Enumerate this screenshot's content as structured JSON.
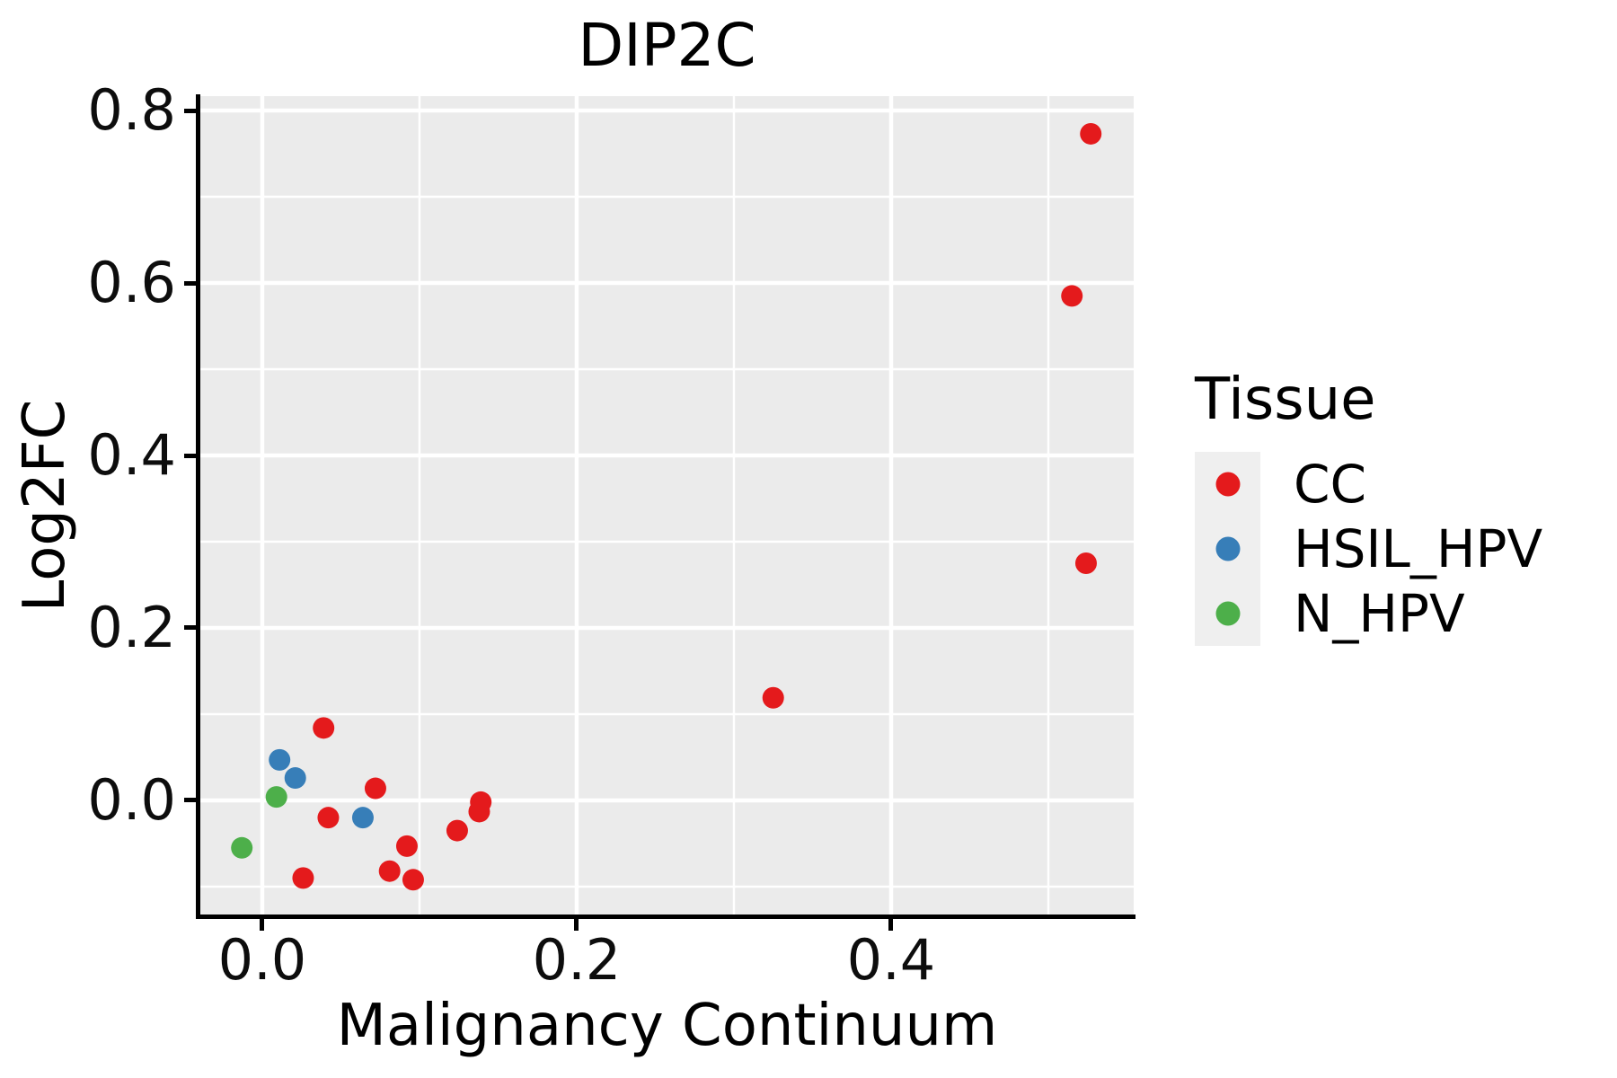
{
  "figure": {
    "title": "DIP2C"
  },
  "chart_data": {
    "type": "scatter",
    "title": "DIP2C",
    "xlabel": "Malignancy Continuum",
    "ylabel": "Log2FC",
    "xlim": [
      -0.0394,
      0.5543
    ],
    "ylim": [
      -0.1344,
      0.8167
    ],
    "x_ticks": [
      0.0,
      0.2,
      0.4
    ],
    "x_tick_labels": [
      "0.0",
      "0.2",
      "0.4"
    ],
    "x_minor_ticks": [
      0.1,
      0.3,
      0.5
    ],
    "y_ticks": [
      0.0,
      0.2,
      0.4,
      0.6,
      0.8
    ],
    "y_tick_labels": [
      "0.0",
      "0.2",
      "0.4",
      "0.6",
      "0.8"
    ],
    "y_minor_ticks": [
      -0.1,
      0.1,
      0.3,
      0.5,
      0.7
    ],
    "grid": true,
    "legend_position": "right",
    "legend_title": "Tissue",
    "series": [
      {
        "name": "CC",
        "color": "#E41A1C",
        "points": [
          [
            0.039,
            0.084
          ],
          [
            0.072,
            0.014
          ],
          [
            0.042,
            -0.02
          ],
          [
            0.026,
            -0.09
          ],
          [
            0.092,
            -0.053
          ],
          [
            0.081,
            -0.082
          ],
          [
            0.096,
            -0.092
          ],
          [
            0.124,
            -0.035
          ],
          [
            0.138,
            -0.013
          ],
          [
            0.139,
            -0.002
          ],
          [
            0.325,
            0.119
          ],
          [
            0.524,
            0.275
          ],
          [
            0.515,
            0.585
          ],
          [
            0.527,
            0.773
          ]
        ]
      },
      {
        "name": "HSIL_HPV",
        "color": "#377EB8",
        "points": [
          [
            0.011,
            0.047
          ],
          [
            0.021,
            0.026
          ],
          [
            0.064,
            -0.02
          ]
        ]
      },
      {
        "name": "N_HPV",
        "color": "#4DAF4A",
        "points": [
          [
            0.009,
            0.004
          ],
          [
            -0.013,
            -0.055
          ]
        ]
      }
    ]
  },
  "legend": {
    "title": "Tissue",
    "entries": [
      {
        "label": "CC",
        "color": "#E41A1C"
      },
      {
        "label": "HSIL_HPV",
        "color": "#377EB8"
      },
      {
        "label": "N_HPV",
        "color": "#4DAF4A"
      }
    ]
  },
  "style": {
    "panel_bg": "#EBEBEB",
    "grid_color": "#FFFFFF",
    "axis_color": "#000000",
    "legend_key_bg": "#EFEFEF",
    "point_radius": 12,
    "legend_point_radius": 13.5,
    "major_grid_width": 4.5,
    "minor_grid_width": 2.5
  }
}
